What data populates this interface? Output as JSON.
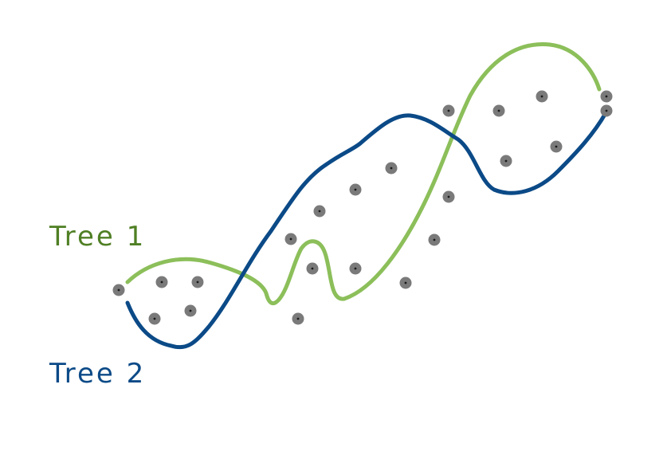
{
  "trees": [
    {
      "label": "Tree 1",
      "color": "#8cbf5a"
    },
    {
      "label": "Tree 2",
      "color": "#0b4a87"
    }
  ],
  "point_color": "#7a7a7a"
}
